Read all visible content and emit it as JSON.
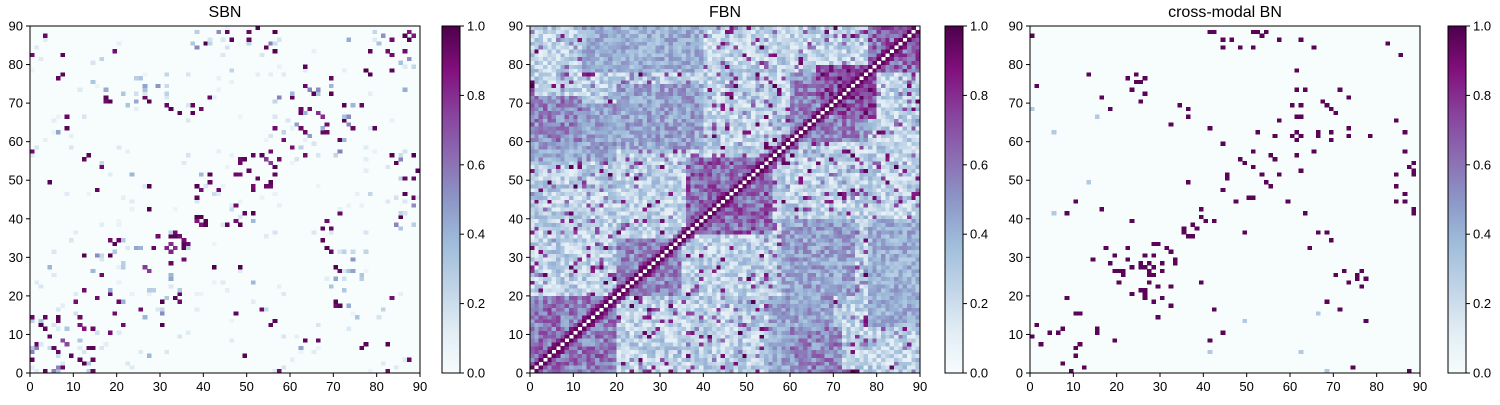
{
  "colors": {
    "cmap": [
      "#f7fcfd",
      "#e0ecf4",
      "#bfd3e6",
      "#9ebcda",
      "#8c96c6",
      "#8c6bb1",
      "#88419d",
      "#810f7c",
      "#4d004b"
    ]
  },
  "chart_data": [
    {
      "type": "heatmap",
      "title": "SBN",
      "xlim": [
        0,
        90
      ],
      "ylim": [
        0,
        90
      ],
      "xticks": [
        "0",
        "10",
        "20",
        "30",
        "40",
        "50",
        "60",
        "70",
        "80",
        "90"
      ],
      "yticks": [
        "0",
        "10",
        "20",
        "30",
        "40",
        "50",
        "60",
        "70",
        "80",
        "90"
      ],
      "colorbar": {
        "range": [
          0,
          1
        ],
        "ticks": [
          "0.0",
          "0.2",
          "0.4",
          "0.6",
          "0.8",
          "1.0"
        ]
      },
      "matrix_size": 90,
      "density": "sparse",
      "blocks": [
        {
          "x": [
            3,
            14
          ],
          "y": [
            0,
            16
          ],
          "v": 0.55
        },
        {
          "x": [
            18,
            28
          ],
          "y": [
            18,
            34
          ],
          "v": 0.6
        },
        {
          "x": [
            28,
            36
          ],
          "y": [
            14,
            37
          ],
          "v": 0.55
        },
        {
          "x": [
            40,
            52
          ],
          "y": [
            38,
            52
          ],
          "v": 0.65
        },
        {
          "x": [
            48,
            56
          ],
          "y": [
            50,
            58
          ],
          "v": 0.6
        },
        {
          "x": [
            56,
            68
          ],
          "y": [
            56,
            66
          ],
          "v": 0.6
        },
        {
          "x": [
            60,
            75
          ],
          "y": [
            60,
            75
          ],
          "v": 0.5
        },
        {
          "x": [
            78,
            90
          ],
          "y": [
            78,
            90
          ],
          "v": 0.7
        },
        {
          "x": [
            83,
            90
          ],
          "y": [
            50,
            58
          ],
          "v": 0.6
        },
        {
          "x": [
            84,
            90
          ],
          "y": [
            38,
            48
          ],
          "v": 0.55
        },
        {
          "x": [
            70,
            78
          ],
          "y": [
            22,
            32
          ],
          "v": 0.5
        },
        {
          "x": [
            55,
            62
          ],
          "y": [
            0,
            2
          ],
          "v": 0.8
        },
        {
          "x": [
            36,
            48
          ],
          "y": [
            84,
            90
          ],
          "v": 0.6
        },
        {
          "x": [
            16,
            28
          ],
          "y": [
            70,
            74
          ],
          "v": 0.5
        },
        {
          "x": [
            30,
            40
          ],
          "y": [
            66,
            70
          ],
          "v": 0.55
        }
      ]
    },
    {
      "type": "heatmap",
      "title": "FBN",
      "xlim": [
        0,
        90
      ],
      "ylim": [
        0,
        90
      ],
      "xticks": [
        "0",
        "10",
        "20",
        "30",
        "40",
        "50",
        "60",
        "70",
        "80",
        "90"
      ],
      "yticks": [
        "0",
        "10",
        "20",
        "30",
        "40",
        "50",
        "60",
        "70",
        "80",
        "90"
      ],
      "colorbar": {
        "range": [
          0,
          1
        ],
        "ticks": [
          "0.0",
          "0.2",
          "0.4",
          "0.6",
          "0.8",
          "1.0"
        ]
      },
      "matrix_size": 90,
      "density": "dense",
      "blocks": [
        {
          "x": [
            0,
            20
          ],
          "y": [
            0,
            20
          ],
          "v": 0.65
        },
        {
          "x": [
            20,
            35
          ],
          "y": [
            20,
            35
          ],
          "v": 0.6
        },
        {
          "x": [
            36,
            56
          ],
          "y": [
            36,
            56
          ],
          "v": 0.7
        },
        {
          "x": [
            60,
            78
          ],
          "y": [
            60,
            78
          ],
          "v": 0.6
        },
        {
          "x": [
            70,
            80
          ],
          "y": [
            66,
            80
          ],
          "v": 0.8
        },
        {
          "x": [
            78,
            90
          ],
          "y": [
            78,
            90
          ],
          "v": 0.7
        },
        {
          "x": [
            0,
            20
          ],
          "y": [
            55,
            70
          ],
          "v": 0.5
        },
        {
          "x": [
            55,
            70
          ],
          "y": [
            0,
            20
          ],
          "v": 0.5
        },
        {
          "x": [
            12,
            40
          ],
          "y": [
            78,
            90
          ],
          "v": 0.45
        },
        {
          "x": [
            78,
            90
          ],
          "y": [
            12,
            40
          ],
          "v": 0.45
        },
        {
          "x": [
            58,
            75
          ],
          "y": [
            20,
            40
          ],
          "v": 0.5
        },
        {
          "x": [
            20,
            40
          ],
          "y": [
            58,
            75
          ],
          "v": 0.5
        },
        {
          "x": [
            60,
            72
          ],
          "y": [
            0,
            12
          ],
          "v": 0.6
        }
      ]
    },
    {
      "type": "heatmap",
      "title": "cross-modal BN",
      "xlim": [
        0,
        90
      ],
      "ylim": [
        0,
        90
      ],
      "xticks": [
        "0",
        "10",
        "20",
        "30",
        "40",
        "50",
        "60",
        "70",
        "80",
        "90"
      ],
      "yticks": [
        "0",
        "10",
        "20",
        "30",
        "40",
        "50",
        "60",
        "70",
        "80",
        "90"
      ],
      "colorbar": {
        "range": [
          0,
          1
        ],
        "ticks": [
          "0.0",
          "0.2",
          "0.4",
          "0.6",
          "0.8",
          "1.0"
        ]
      },
      "matrix_size": 90,
      "density": "binary",
      "blocks": [
        {
          "x": [
            3,
            14
          ],
          "y": [
            0,
            16
          ],
          "v": 0.55
        },
        {
          "x": [
            18,
            28
          ],
          "y": [
            18,
            34
          ],
          "v": 0.6
        },
        {
          "x": [
            28,
            36
          ],
          "y": [
            14,
            37
          ],
          "v": 0.55
        },
        {
          "x": [
            40,
            52
          ],
          "y": [
            38,
            52
          ],
          "v": 0.65
        },
        {
          "x": [
            48,
            56
          ],
          "y": [
            50,
            58
          ],
          "v": 0.6
        },
        {
          "x": [
            56,
            68
          ],
          "y": [
            56,
            66
          ],
          "v": 0.6
        },
        {
          "x": [
            60,
            75
          ],
          "y": [
            60,
            75
          ],
          "v": 0.5
        },
        {
          "x": [
            78,
            90
          ],
          "y": [
            78,
            90
          ],
          "v": 0.7
        },
        {
          "x": [
            83,
            90
          ],
          "y": [
            50,
            58
          ],
          "v": 0.6
        },
        {
          "x": [
            84,
            90
          ],
          "y": [
            38,
            48
          ],
          "v": 0.55
        },
        {
          "x": [
            70,
            78
          ],
          "y": [
            22,
            32
          ],
          "v": 0.5
        },
        {
          "x": [
            55,
            62
          ],
          "y": [
            0,
            2
          ],
          "v": 0.8
        },
        {
          "x": [
            36,
            48
          ],
          "y": [
            84,
            90
          ],
          "v": 0.6
        },
        {
          "x": [
            16,
            28
          ],
          "y": [
            70,
            74
          ],
          "v": 0.5
        },
        {
          "x": [
            30,
            40
          ],
          "y": [
            66,
            70
          ],
          "v": 0.55
        }
      ]
    }
  ]
}
